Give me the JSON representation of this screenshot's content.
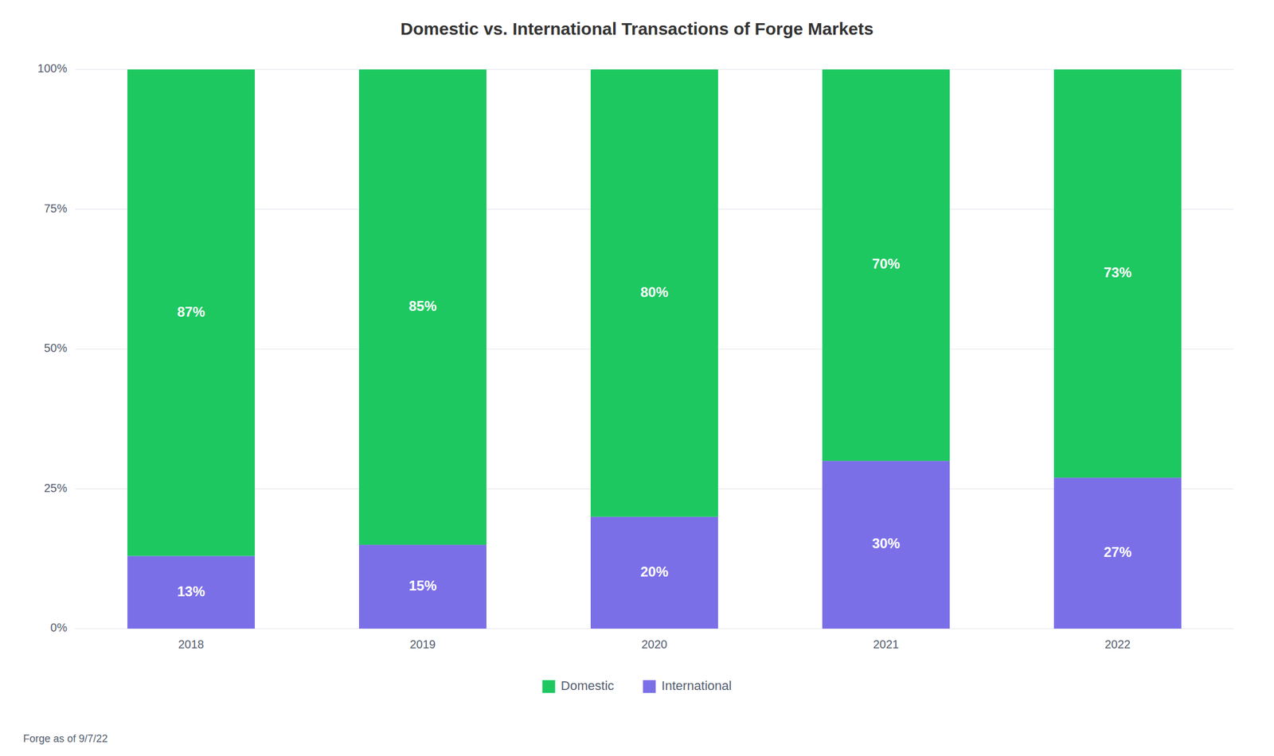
{
  "chart_data": {
    "type": "bar",
    "stacked": true,
    "title": "Domestic vs. International Transactions of Forge Markets",
    "footnote": "Forge as of 9/7/22",
    "categories": [
      "2018",
      "2019",
      "2020",
      "2021",
      "2022"
    ],
    "series": [
      {
        "name": "International",
        "color": "#7B6FE8",
        "values": [
          13,
          15,
          20,
          30,
          27
        ],
        "value_labels": [
          "13%",
          "15%",
          "20%",
          "30%",
          "27%"
        ]
      },
      {
        "name": "Domestic",
        "color": "#1DC860",
        "values": [
          87,
          85,
          80,
          70,
          73
        ],
        "value_labels": [
          "87%",
          "85%",
          "80%",
          "70%",
          "73%"
        ]
      }
    ],
    "ylim": [
      0,
      100
    ],
    "yticks": [
      {
        "value": 0,
        "label": "0%"
      },
      {
        "value": 25,
        "label": "25%"
      },
      {
        "value": 50,
        "label": "50%"
      },
      {
        "value": 75,
        "label": "75%"
      },
      {
        "value": 100,
        "label": "100%"
      }
    ],
    "grid": true,
    "data_labels": true,
    "legend": "bottom"
  }
}
